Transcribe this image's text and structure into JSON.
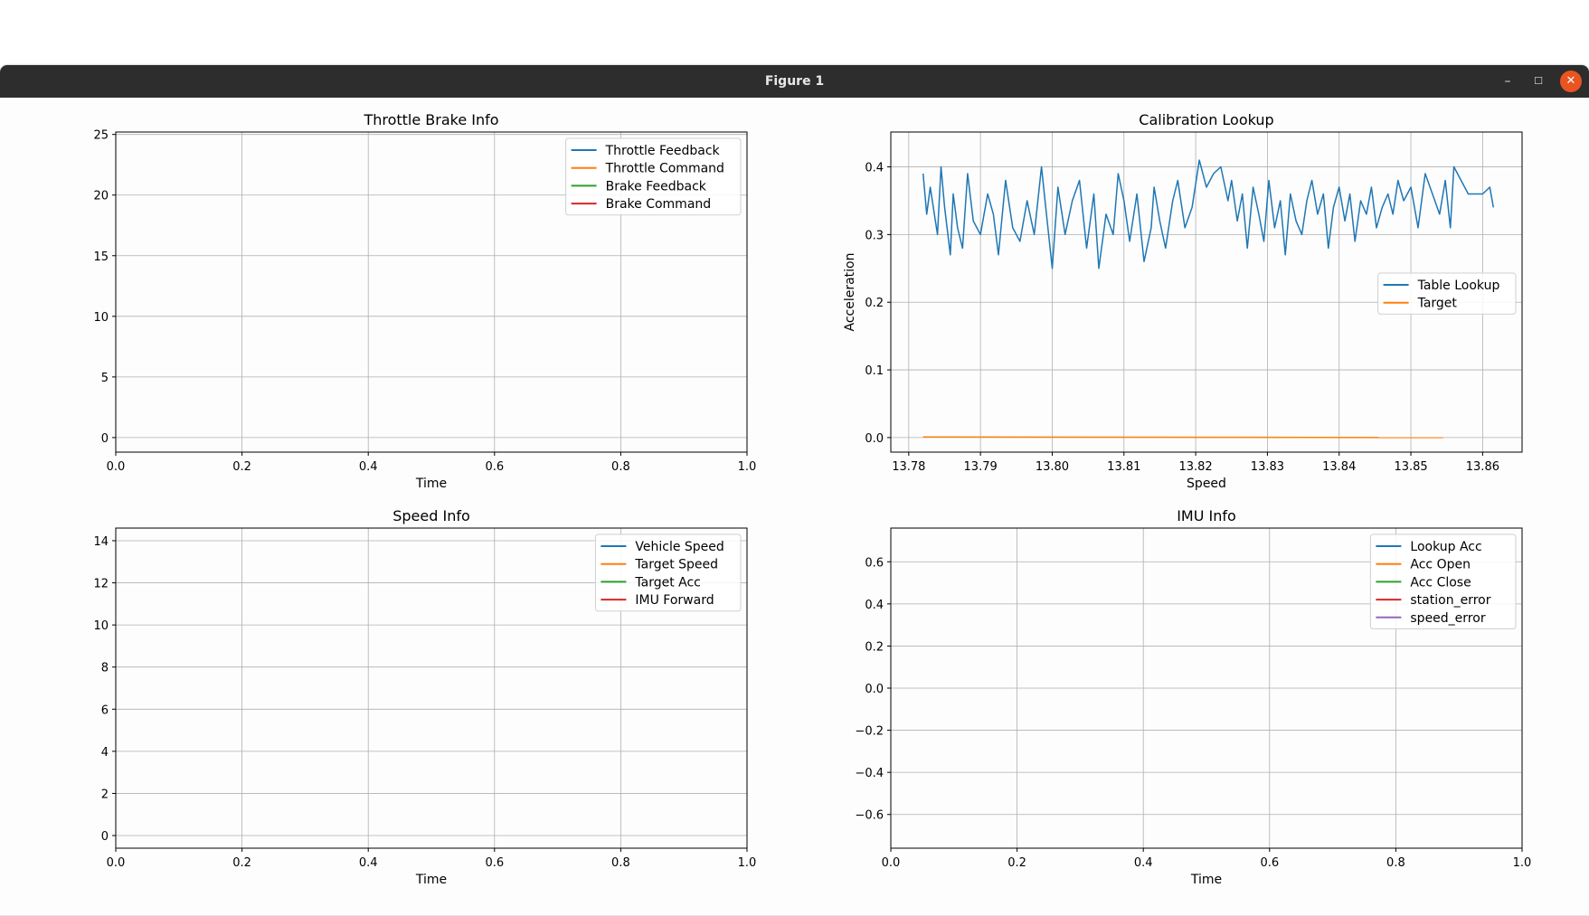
{
  "window": {
    "title": "Figure 1",
    "minimize": "–",
    "maximize": "☐",
    "close": "✕"
  },
  "chart_data": [
    {
      "type": "line",
      "title": "Throttle Brake Info",
      "xlabel": "Time",
      "ylabel": "",
      "xlim": [
        0,
        1
      ],
      "ylim": [
        -1.2,
        25.2
      ],
      "xticks": [
        0.0,
        0.2,
        0.4,
        0.6,
        0.8,
        1.0
      ],
      "xtick_labels": [
        "0.0",
        "0.2",
        "0.4",
        "0.6",
        "0.8",
        "1.0"
      ],
      "yticks": [
        0,
        5,
        10,
        15,
        20,
        25
      ],
      "ytick_labels": [
        "0",
        "5",
        "10",
        "15",
        "20",
        "25"
      ],
      "grid": true,
      "legend_loc": "upper right",
      "series": [
        {
          "name": "Throttle Feedback",
          "color": "#1f77b4",
          "x": [],
          "y": []
        },
        {
          "name": "Throttle Command",
          "color": "#ff7f0e",
          "x": [],
          "y": []
        },
        {
          "name": "Brake Feedback",
          "color": "#2ca02c",
          "x": [],
          "y": []
        },
        {
          "name": "Brake Command",
          "color": "#d62728",
          "x": [],
          "y": []
        }
      ]
    },
    {
      "type": "line",
      "title": "Calibration Lookup",
      "xlabel": "Speed",
      "ylabel": "Acceleration",
      "xlim": [
        13.7775,
        13.8655
      ],
      "ylim": [
        -0.0215,
        0.4515
      ],
      "xticks": [
        13.78,
        13.79,
        13.8,
        13.81,
        13.82,
        13.83,
        13.84,
        13.85,
        13.86
      ],
      "xtick_labels": [
        "13.78",
        "13.79",
        "13.80",
        "13.81",
        "13.82",
        "13.83",
        "13.84",
        "13.85",
        "13.86"
      ],
      "yticks": [
        0.0,
        0.1,
        0.2,
        0.3,
        0.4
      ],
      "ytick_labels": [
        "0.0",
        "0.1",
        "0.2",
        "0.3",
        "0.4"
      ],
      "grid": true,
      "legend_loc": "center right",
      "series": [
        {
          "name": "Table Lookup",
          "color": "#1f77b4",
          "x": [
            13.782,
            13.7825,
            13.783,
            13.784,
            13.7845,
            13.785,
            13.7858,
            13.7862,
            13.7868,
            13.7875,
            13.7882,
            13.789,
            13.79,
            13.791,
            13.7918,
            13.7925,
            13.7935,
            13.7945,
            13.7955,
            13.7965,
            13.7975,
            13.7985,
            13.7992,
            13.8,
            13.8008,
            13.8018,
            13.8028,
            13.8038,
            13.8048,
            13.8058,
            13.8065,
            13.8075,
            13.8085,
            13.8092,
            13.81,
            13.8108,
            13.8118,
            13.8128,
            13.8138,
            13.8142,
            13.815,
            13.8158,
            13.8168,
            13.8175,
            13.8185,
            13.8195,
            13.8205,
            13.8215,
            13.8225,
            13.8235,
            13.8245,
            13.825,
            13.8258,
            13.8265,
            13.8272,
            13.828,
            13.8288,
            13.8295,
            13.8302,
            13.831,
            13.8318,
            13.8325,
            13.8332,
            13.834,
            13.8348,
            13.8355,
            13.8362,
            13.837,
            13.8378,
            13.8385,
            13.8392,
            13.84,
            13.8408,
            13.8415,
            13.8422,
            13.843,
            13.8438,
            13.8445,
            13.8452,
            13.846,
            13.8468,
            13.8475,
            13.8482,
            13.849,
            13.85,
            13.851,
            13.852,
            13.853,
            13.854,
            13.8548,
            13.8555,
            13.856,
            13.858,
            13.86,
            13.861,
            13.8615
          ],
          "y": [
            0.39,
            0.33,
            0.37,
            0.3,
            0.4,
            0.34,
            0.27,
            0.36,
            0.31,
            0.28,
            0.39,
            0.32,
            0.3,
            0.36,
            0.33,
            0.27,
            0.38,
            0.31,
            0.29,
            0.35,
            0.3,
            0.4,
            0.33,
            0.25,
            0.37,
            0.3,
            0.35,
            0.38,
            0.28,
            0.36,
            0.25,
            0.33,
            0.3,
            0.39,
            0.35,
            0.29,
            0.36,
            0.26,
            0.31,
            0.37,
            0.32,
            0.28,
            0.35,
            0.38,
            0.31,
            0.34,
            0.41,
            0.37,
            0.39,
            0.4,
            0.35,
            0.38,
            0.32,
            0.36,
            0.28,
            0.37,
            0.33,
            0.29,
            0.38,
            0.31,
            0.35,
            0.27,
            0.36,
            0.32,
            0.3,
            0.35,
            0.38,
            0.33,
            0.36,
            0.28,
            0.34,
            0.37,
            0.32,
            0.36,
            0.29,
            0.35,
            0.33,
            0.37,
            0.31,
            0.34,
            0.36,
            0.33,
            0.38,
            0.35,
            0.37,
            0.31,
            0.39,
            0.36,
            0.33,
            0.38,
            0.31,
            0.4,
            0.36,
            0.36,
            0.37,
            0.34
          ]
        },
        {
          "name": "Target",
          "color": "#ff7f0e",
          "x": [
            13.782,
            13.8545
          ],
          "y": [
            0.001,
            0.0
          ]
        }
      ]
    },
    {
      "type": "line",
      "title": "Speed Info",
      "xlabel": "Time",
      "ylabel": "",
      "xlim": [
        0,
        1
      ],
      "ylim": [
        -0.6,
        14.6
      ],
      "xticks": [
        0.0,
        0.2,
        0.4,
        0.6,
        0.8,
        1.0
      ],
      "xtick_labels": [
        "0.0",
        "0.2",
        "0.4",
        "0.6",
        "0.8",
        "1.0"
      ],
      "yticks": [
        0,
        2,
        4,
        6,
        8,
        10,
        12,
        14
      ],
      "ytick_labels": [
        "0",
        "2",
        "4",
        "6",
        "8",
        "10",
        "12",
        "14"
      ],
      "grid": true,
      "legend_loc": "upper right",
      "series": [
        {
          "name": "Vehicle Speed",
          "color": "#1f77b4",
          "x": [],
          "y": []
        },
        {
          "name": "Target Speed",
          "color": "#ff7f0e",
          "x": [],
          "y": []
        },
        {
          "name": "Target Acc",
          "color": "#2ca02c",
          "x": [],
          "y": []
        },
        {
          "name": "IMU Forward",
          "color": "#d62728",
          "x": [],
          "y": []
        }
      ]
    },
    {
      "type": "line",
      "title": "IMU Info",
      "xlabel": "Time",
      "ylabel": "",
      "xlim": [
        0,
        1
      ],
      "ylim": [
        -0.76,
        0.76
      ],
      "xticks": [
        0.0,
        0.2,
        0.4,
        0.6,
        0.8,
        1.0
      ],
      "xtick_labels": [
        "0.0",
        "0.2",
        "0.4",
        "0.6",
        "0.8",
        "1.0"
      ],
      "yticks": [
        -0.6,
        -0.4,
        -0.2,
        0.0,
        0.2,
        0.4,
        0.6
      ],
      "ytick_labels": [
        "−0.6",
        "−0.4",
        "−0.2",
        "0.0",
        "0.2",
        "0.4",
        "0.6"
      ],
      "grid": true,
      "legend_loc": "upper right",
      "series": [
        {
          "name": "Lookup Acc",
          "color": "#1f77b4",
          "x": [],
          "y": []
        },
        {
          "name": "Acc Open",
          "color": "#ff7f0e",
          "x": [],
          "y": []
        },
        {
          "name": "Acc Close",
          "color": "#2ca02c",
          "x": [],
          "y": []
        },
        {
          "name": "station_error",
          "color": "#d62728",
          "x": [],
          "y": []
        },
        {
          "name": "speed_error",
          "color": "#9467bd",
          "x": [],
          "y": []
        }
      ]
    }
  ]
}
